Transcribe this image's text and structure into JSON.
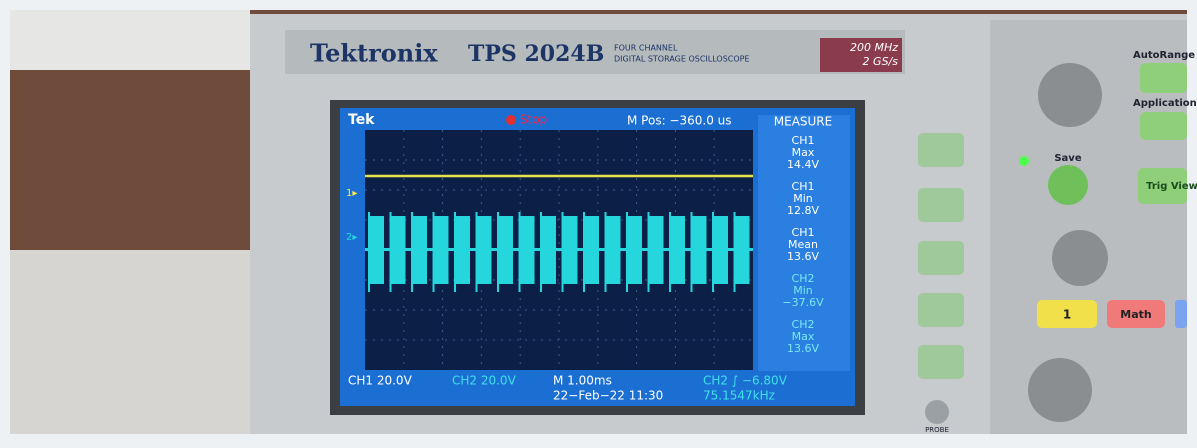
{
  "header": {
    "brand": "Tektronix",
    "model": "TPS 2024B",
    "line1": "FOUR CHANNEL",
    "line2": "DIGITAL STORAGE OSCILLOSCOPE",
    "bandwidth": "200 MHz",
    "rate": "2 GS/s"
  },
  "screen": {
    "tek": "Tek",
    "state": "Stop",
    "mpos": "M Pos: −360.0 us",
    "ch1_marker": "1▸",
    "ch2_marker": "2▸",
    "measure": {
      "title": "MEASURE",
      "items": [
        [
          "CH1",
          "Max",
          "14.4V"
        ],
        [
          "CH1",
          "Min",
          "12.8V"
        ],
        [
          "CH1",
          "Mean",
          "13.6V"
        ],
        [
          "CH2",
          "Min",
          "−37.6V"
        ],
        [
          "CH2",
          "Max",
          "13.6V"
        ]
      ]
    },
    "footer": {
      "ch1": "CH1  20.0V",
      "ch2": "CH2  20.0V",
      "time": "M 1.00ms",
      "date": "22−Feb−22 11:30",
      "trig": "CH2 ∫  −6.80V",
      "freq": "75.1547kHz"
    }
  },
  "panel": {
    "autorange": "AutoRange",
    "application": "Application",
    "save": "Save",
    "trig_view": "Trig View",
    "ch1_button": "1",
    "math": "Math",
    "probe": "PROBE"
  }
}
